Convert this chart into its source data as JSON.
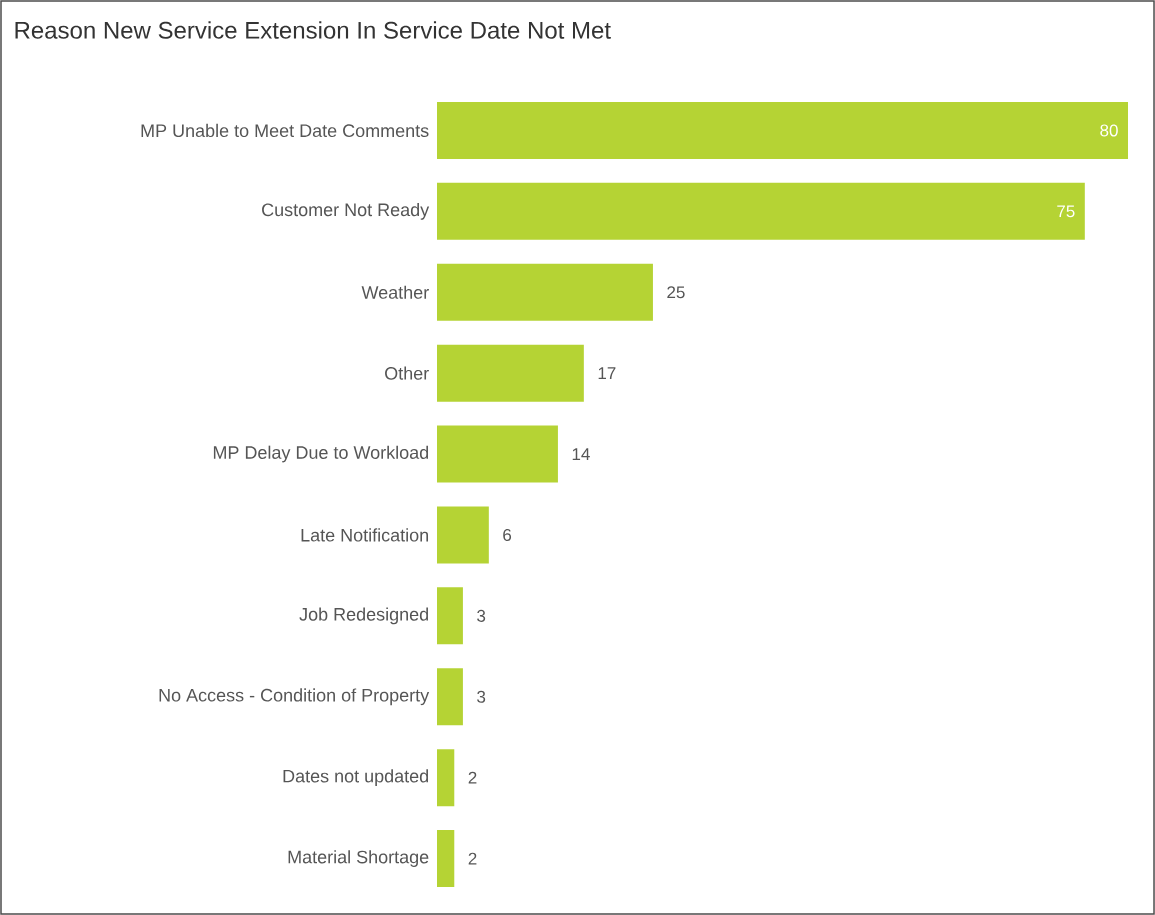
{
  "chart_data": {
    "type": "bar",
    "orientation": "horizontal",
    "title": "Reason New Service Extension In Service Date Not Met",
    "categories": [
      "MP Unable to Meet Date Comments",
      "Customer Not Ready",
      "Weather",
      "Other",
      "MP Delay Due to Workload",
      "Late Notification",
      "Job Redesigned",
      "No Access - Condition of Property",
      "Dates not updated",
      "Material Shortage"
    ],
    "values": [
      80,
      75,
      25,
      17,
      14,
      6,
      3,
      3,
      2,
      2
    ],
    "color": "#b5d334",
    "xlim": [
      0,
      80
    ],
    "data_labels": true,
    "tick_labels": "y"
  }
}
